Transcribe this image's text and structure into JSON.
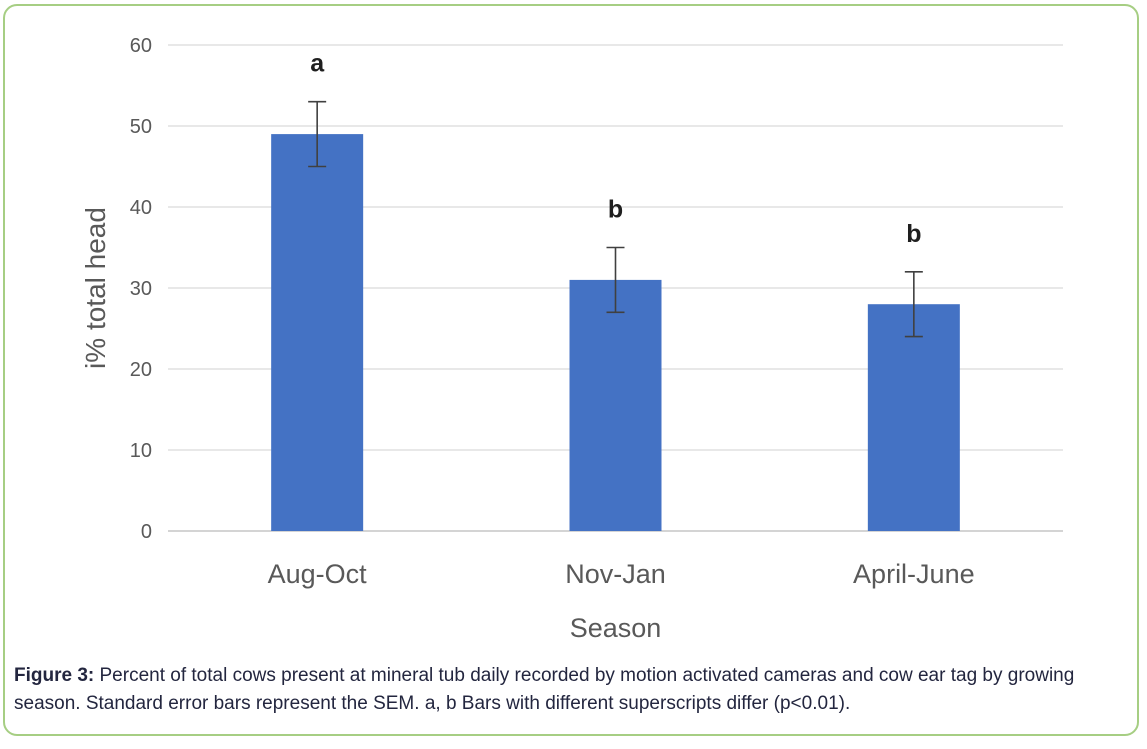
{
  "figure": {
    "caption_label": "Figure 3:",
    "caption_text": " Percent of total cows present at mineral tub daily recorded by motion activated cameras and cow ear tag by growing season. Standard error bars represent the SEM. a, b Bars with different superscripts differ (p<0.01)."
  },
  "chart_data": {
    "type": "bar",
    "title": "",
    "xlabel": "Season",
    "ylabel": "i% total head",
    "categories": [
      "Aug-Oct",
      "Nov-Jan",
      "April-June"
    ],
    "values": [
      49,
      31,
      28
    ],
    "error_sem": [
      4,
      4,
      4
    ],
    "superscripts": [
      "a",
      "b",
      "b"
    ],
    "ylim": [
      0,
      60
    ],
    "ytick_step": 10,
    "yticks": [
      0,
      10,
      20,
      30,
      40,
      50,
      60
    ],
    "grid": true,
    "legend": "none",
    "colors": {
      "bar": "#4472C4",
      "grid": "#D9D9D9",
      "axis": "#C6C6C6",
      "error": "#404040",
      "tick_label": "#595959",
      "axis_title": "#595959",
      "superscript": "#1F1F1F",
      "frame_border": "#A6CE83",
      "caption_text": "#23263F"
    }
  }
}
